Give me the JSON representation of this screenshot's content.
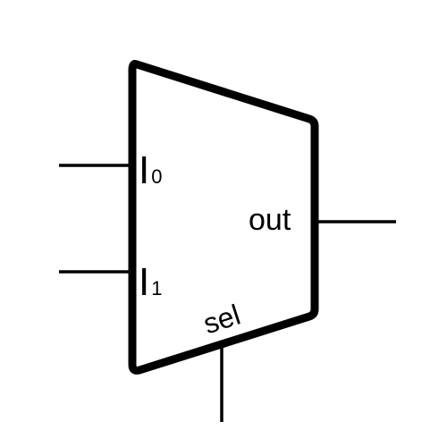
{
  "diagram": {
    "inputs": [
      {
        "label": "I",
        "subscript": "0"
      },
      {
        "label": "I",
        "subscript": "1"
      }
    ],
    "output_label": "out",
    "select_label": "sel"
  },
  "colors": {
    "stroke": "#000000",
    "background": "#ffffff"
  }
}
